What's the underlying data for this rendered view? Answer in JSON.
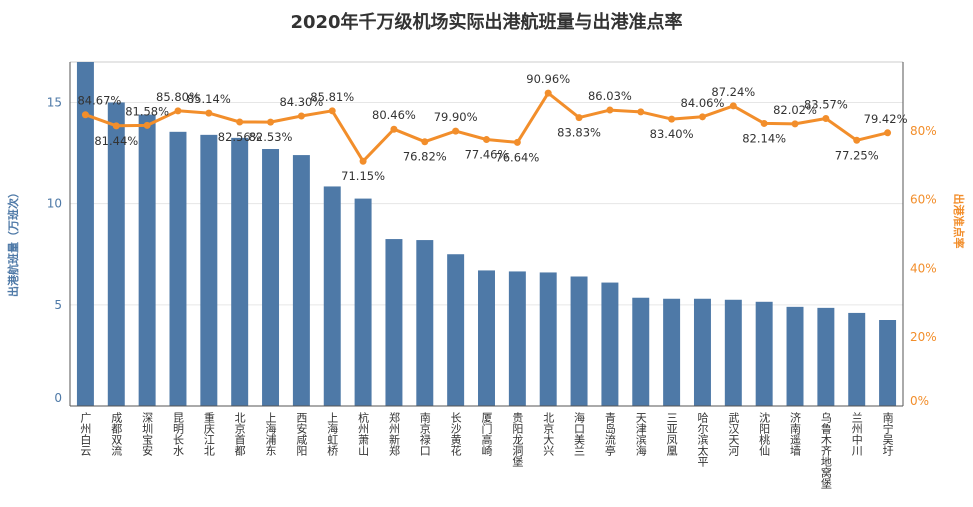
{
  "chart_data": {
    "type": "bar",
    "title": "2020年千万级机场实际出港航班量与出港准点率",
    "ylabel": "出港航班量（万班次）",
    "y2label": "出港准点率",
    "ylim": [
      0,
      17
    ],
    "y2lim": [
      0,
      100
    ],
    "yticks": [
      0,
      5,
      10,
      15
    ],
    "y2ticks": [
      "0%",
      "20%",
      "40%",
      "60%",
      "80%"
    ],
    "y2tick_values": [
      0,
      20,
      40,
      60,
      80
    ],
    "grid": true,
    "colors": {
      "bar": "#4e79a7",
      "line": "#f28e2b",
      "grid": "#e6e6e6"
    },
    "categories": [
      "广州白云",
      "成都双流",
      "深圳宝安",
      "昆明长水",
      "重庆江北",
      "北京首都",
      "上海浦东",
      "西安咸阳",
      "上海虹桥",
      "杭州萧山",
      "郑州新郑",
      "南京禄口",
      "长沙黄花",
      "厦门高崎",
      "贵阳龙洞堡",
      "北京大兴",
      "海口美兰",
      "青岛流亭",
      "天津滨海",
      "三亚凤凰",
      "哈尔滨太平",
      "武汉天河",
      "沈阳桃仙",
      "济南遥墙",
      "乌鲁木齐地窝堡",
      "兰州中川",
      "南宁吴圩"
    ],
    "series": [
      {
        "type": "bar",
        "values": [
          17.0,
          15.0,
          14.4,
          13.55,
          13.4,
          13.25,
          12.7,
          12.4,
          10.85,
          10.25,
          8.25,
          8.2,
          7.5,
          6.7,
          6.65,
          6.6,
          6.4,
          6.1,
          5.35,
          5.3,
          5.3,
          5.25,
          5.15,
          4.9,
          4.85,
          4.6,
          4.25
        ]
      },
      {
        "type": "line",
        "axis": "right",
        "values": [
          84.67,
          81.44,
          81.58,
          85.8,
          85.14,
          82.56,
          82.53,
          84.3,
          85.81,
          71.15,
          80.46,
          76.82,
          79.9,
          77.46,
          76.64,
          90.96,
          83.83,
          86.03,
          85.5,
          83.4,
          84.06,
          87.24,
          82.14,
          82.02,
          83.57,
          77.25,
          79.42
        ],
        "labels": [
          "84.67%",
          "81.44%",
          "81.58%",
          "85.80%",
          "85.14%",
          "82.56%",
          "82.53%",
          "84.30%",
          "85.81%",
          "71.15%",
          "80.46%",
          "76.82%",
          "79.90%",
          "77.46%",
          "76.64%",
          "90.96%",
          "83.83%",
          "86.03%",
          "",
          "83.40%",
          "84.06%",
          "87.24%",
          "82.14%",
          "82.02%",
          "83.57%",
          "77.25%",
          "79.42%"
        ],
        "label_positions": [
          "above",
          "below",
          "above",
          "above",
          "above",
          "below",
          "below",
          "above",
          "above",
          "below",
          "above",
          "below",
          "above",
          "below",
          "below",
          "above",
          "below",
          "above",
          "above",
          "below",
          "above",
          "above",
          "below",
          "above",
          "above",
          "below",
          "above"
        ]
      }
    ]
  }
}
